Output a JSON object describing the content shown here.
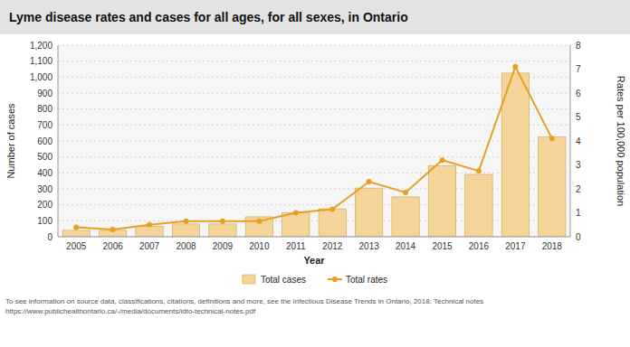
{
  "chart_data": {
    "type": "bar",
    "title": "Lyme disease rates and cases  for all ages,  for all sexes, in Ontario",
    "x_label": "Year",
    "y_label": "Number of cases",
    "y2_label": "Rates per 100,000 population",
    "categories": [
      "2005",
      "2006",
      "2007",
      "2008",
      "2009",
      "2010",
      "2011",
      "2012",
      "2013",
      "2014",
      "2015",
      "2016",
      "2017",
      "2018"
    ],
    "series": [
      {
        "name": "Total cases",
        "type": "bar",
        "color": "#F5D49A",
        "values": [
          40,
          40,
          65,
          80,
          80,
          125,
          150,
          175,
          305,
          250,
          445,
          390,
          1025,
          625
        ]
      },
      {
        "name": "Total rates",
        "type": "line",
        "axis": "y2",
        "color": "#E8A020",
        "marker": "circle",
        "values": [
          0.4,
          0.3,
          0.5,
          0.65,
          0.65,
          0.65,
          1.0,
          1.15,
          2.3,
          1.85,
          3.2,
          2.75,
          7.1,
          4.1
        ]
      }
    ],
    "ylim": [
      0,
      1200
    ],
    "yticks": [
      0,
      100,
      200,
      300,
      400,
      500,
      600,
      700,
      800,
      900,
      {
        "value": 1000,
        "label": "1,000"
      },
      {
        "value": 1100,
        "label": "1,100"
      },
      {
        "value": 1200,
        "label": "1,200"
      }
    ],
    "y2lim": [
      0,
      8
    ],
    "y2ticks": [
      0,
      1,
      2,
      3,
      4,
      5,
      6,
      7,
      8
    ],
    "grid": true,
    "legend": "bottom",
    "footnote": "To see information on source data, classifications, citations, definitions and more, see the Infectious Disease Trends in Ontario, 2018: Technical notes\nhttps://www.publichealthontario.ca/-/media/documents/idto-technical-notes.pdf"
  }
}
